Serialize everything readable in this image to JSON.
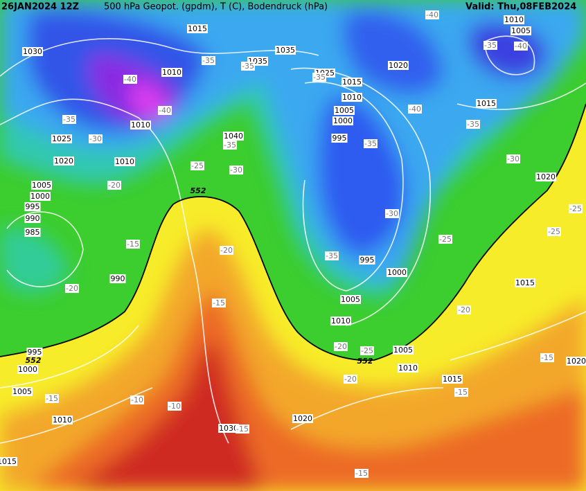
{
  "header": {
    "run": "26JAN2024 12Z",
    "title": "500 hPa Geopot. (gpdm), T (C), Bodendruck (hPa)",
    "valid": "Valid: Thu,08FEB2024"
  },
  "labels": {
    "isobars": [
      "1015",
      "1030",
      "1035",
      "1035",
      "1010",
      "1025",
      "1020",
      "1015",
      "1010",
      "1005",
      "1000",
      "995",
      "1010",
      "1005",
      "1015",
      "1010",
      "1025",
      "1040",
      "1020",
      "1010",
      "1005",
      "1000",
      "995",
      "990",
      "985",
      "1020",
      "990",
      "995",
      "1000",
      "1005",
      "1010",
      "1015",
      "995",
      "1000",
      "1005",
      "1010",
      "1015",
      "1020",
      "1005",
      "1010",
      "1020",
      "1030",
      "1015"
    ],
    "temperature": [
      "-40",
      "-35",
      "-35",
      "-40",
      "-40",
      "-40",
      "-35",
      "-35",
      "-40",
      "-35",
      "-30",
      "-35",
      "-35",
      "-35",
      "-25",
      "-30",
      "-30",
      "-20",
      "-25",
      "-25",
      "-30",
      "-25",
      "-15",
      "-20",
      "-35",
      "-15",
      "-20",
      "-20",
      "-20",
      "-25",
      "-20",
      "-15",
      "-15",
      "-15",
      "-10",
      "-10",
      "-15",
      "-15"
    ],
    "geopotential": [
      "552",
      "552",
      "552"
    ]
  }
}
